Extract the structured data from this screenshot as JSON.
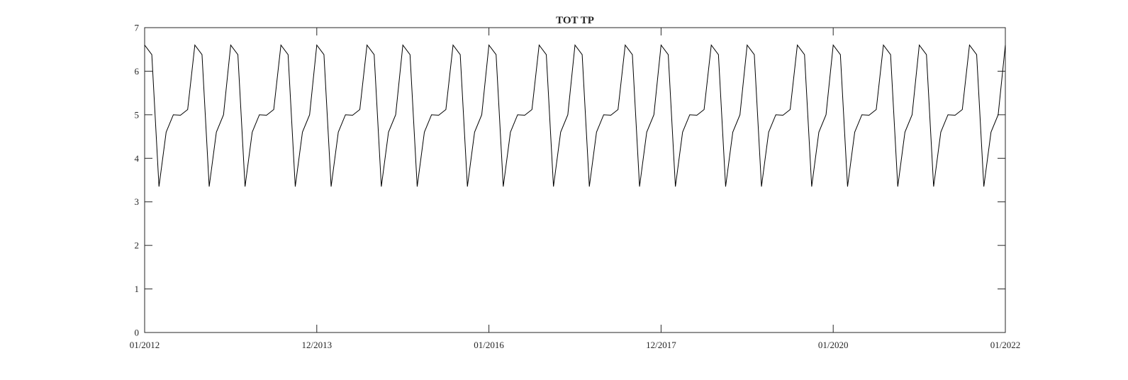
{
  "chart_data": {
    "type": "line",
    "title": "TOT TP",
    "xlabel": "",
    "ylabel": "",
    "x_tick_labels": [
      "01/2012",
      "12/2013",
      "01/2016",
      "12/2017",
      "01/2020",
      "01/2022"
    ],
    "y_ticks": [
      0,
      1,
      2,
      3,
      4,
      5,
      6,
      7
    ],
    "ylim": [
      0,
      7
    ],
    "grid": false,
    "legend": "none",
    "line_color": "#000000",
    "series": [
      {
        "name": "",
        "profile_note": "annual seasonal cycle repeated 10 times",
        "x": [
          "2012-01",
          "2012-02",
          "2012-03",
          "2012-04",
          "2012-05",
          "2012-06",
          "2012-07",
          "2012-08",
          "2012-09",
          "2012-10",
          "2012-11",
          "2012-12",
          "2013-01",
          "2013-02",
          "2013-03",
          "2013-04",
          "2013-05",
          "2013-06",
          "2013-07",
          "2013-08",
          "2013-09",
          "2013-10",
          "2013-11",
          "2013-12",
          "2014-01",
          "2014-02",
          "2014-03",
          "2014-04",
          "2014-05",
          "2014-06",
          "2014-07",
          "2014-08",
          "2014-09",
          "2014-10",
          "2014-11",
          "2014-12",
          "2015-01",
          "2015-02",
          "2015-03",
          "2015-04",
          "2015-05",
          "2015-06",
          "2015-07",
          "2015-08",
          "2015-09",
          "2015-10",
          "2015-11",
          "2015-12",
          "2016-01",
          "2016-02",
          "2016-03",
          "2016-04",
          "2016-05",
          "2016-06",
          "2016-07",
          "2016-08",
          "2016-09",
          "2016-10",
          "2016-11",
          "2016-12",
          "2017-01",
          "2017-02",
          "2017-03",
          "2017-04",
          "2017-05",
          "2017-06",
          "2017-07",
          "2017-08",
          "2017-09",
          "2017-10",
          "2017-11",
          "2017-12",
          "2018-01",
          "2018-02",
          "2018-03",
          "2018-04",
          "2018-05",
          "2018-06",
          "2018-07",
          "2018-08",
          "2018-09",
          "2018-10",
          "2018-11",
          "2018-12",
          "2019-01",
          "2019-02",
          "2019-03",
          "2019-04",
          "2019-05",
          "2019-06",
          "2019-07",
          "2019-08",
          "2019-09",
          "2019-10",
          "2019-11",
          "2019-12",
          "2020-01",
          "2020-02",
          "2020-03",
          "2020-04",
          "2020-05",
          "2020-06",
          "2020-07",
          "2020-08",
          "2020-09",
          "2020-10",
          "2020-11",
          "2020-12",
          "2021-01",
          "2021-02",
          "2021-03",
          "2021-04",
          "2021-05",
          "2021-06",
          "2021-07",
          "2021-08",
          "2021-09",
          "2021-10",
          "2021-11",
          "2021-12",
          "2022-01"
        ],
        "values": [
          6.6,
          6.38,
          3.35,
          4.6,
          5.0,
          4.99,
          5.12,
          6.6,
          6.38,
          3.35,
          4.6,
          5.0,
          6.6,
          6.38,
          3.35,
          4.6,
          5.0,
          4.99,
          5.12,
          6.6,
          6.38,
          3.35,
          4.6,
          5.0,
          6.6,
          6.38,
          3.35,
          4.6,
          5.0,
          4.99,
          5.12,
          6.6,
          6.38,
          3.35,
          4.6,
          5.0,
          6.6,
          6.38,
          3.35,
          4.6,
          5.0,
          4.99,
          5.12,
          6.6,
          6.38,
          3.35,
          4.6,
          5.0,
          6.6,
          6.38,
          3.35,
          4.6,
          5.0,
          4.99,
          5.12,
          6.6,
          6.38,
          3.35,
          4.6,
          5.0,
          6.6,
          6.38,
          3.35,
          4.6,
          5.0,
          4.99,
          5.12,
          6.6,
          6.38,
          3.35,
          4.6,
          5.0,
          6.6,
          6.38,
          3.35,
          4.6,
          5.0,
          4.99,
          5.12,
          6.6,
          6.38,
          3.35,
          4.6,
          5.0,
          6.6,
          6.38,
          3.35,
          4.6,
          5.0,
          4.99,
          5.12,
          6.6,
          6.38,
          3.35,
          4.6,
          5.0,
          6.6,
          6.38,
          3.35,
          4.6,
          5.0,
          4.99,
          5.12,
          6.6,
          6.38,
          3.35,
          4.6,
          5.0,
          6.6,
          6.38,
          3.35,
          4.6,
          5.0,
          4.99,
          5.12,
          6.6,
          6.38,
          3.35,
          4.6,
          5.0,
          6.6
        ]
      }
    ]
  }
}
